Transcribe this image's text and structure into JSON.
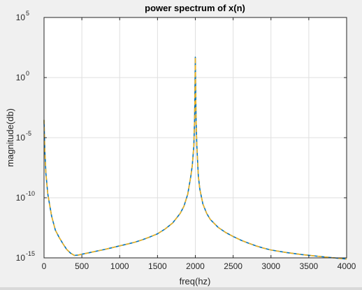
{
  "chart_data": {
    "type": "line",
    "title": "power spectrum of x(n)",
    "xlabel": "freq(hz)",
    "ylabel": "magnitude(db)",
    "xlim": [
      0,
      4000
    ],
    "ylim": [
      1e-15,
      100000.0
    ],
    "yscale": "log",
    "grid": true,
    "x_ticks": [
      0,
      500,
      1000,
      1500,
      2000,
      2500,
      3000,
      3500,
      4000
    ],
    "y_ticks": [
      {
        "base": "10",
        "exp": "-15"
      },
      {
        "base": "10",
        "exp": "-10"
      },
      {
        "base": "10",
        "exp": "-5"
      },
      {
        "base": "10",
        "exp": "0"
      },
      {
        "base": "10",
        "exp": "5"
      }
    ],
    "series": [
      {
        "color": "#0072bd",
        "style": "solid",
        "x": [
          0,
          10,
          25,
          50,
          100,
          150,
          200,
          250,
          300,
          350,
          400,
          450,
          500,
          600,
          700,
          800,
          900,
          1000,
          1100,
          1200,
          1300,
          1400,
          1500,
          1600,
          1700,
          1800,
          1850,
          1900,
          1940,
          1960,
          1980,
          1990,
          1995,
          2000,
          2005,
          2010,
          2020,
          2040,
          2060,
          2100,
          2150,
          2200,
          2300,
          2400,
          2500,
          2600,
          2700,
          2800,
          2900,
          3000,
          3200,
          3400,
          3600,
          3800,
          4000
        ],
        "y": [
          0.0003,
          1e-06,
          1e-08,
          2e-10,
          3e-12,
          2e-13,
          5e-14,
          1.5e-14,
          5e-15,
          2.5e-15,
          1.6e-15,
          1.7e-15,
          2e-15,
          2.7e-15,
          3.7e-15,
          5e-15,
          7e-15,
          1e-14,
          1.4e-14,
          2e-14,
          3.2e-14,
          5.5e-14,
          1e-13,
          2.5e-13,
          8e-13,
          5e-12,
          2e-11,
          2e-10,
          6e-09,
          5e-08,
          2e-06,
          0.0003,
          0.05,
          50.0,
          0.05,
          0.0003,
          2e-06,
          6e-09,
          5e-10,
          3e-11,
          5e-12,
          1.5e-12,
          3.5e-13,
          1.3e-13,
          6e-14,
          3e-14,
          1.7e-14,
          1e-14,
          6.5e-15,
          4.5e-15,
          2.8e-15,
          1.9e-15,
          1.4e-15,
          1.05e-15,
          8e-16
        ]
      },
      {
        "color": "#edb120",
        "style": "dashed",
        "x": [
          0,
          10,
          25,
          50,
          100,
          150,
          200,
          250,
          300,
          350,
          400,
          450,
          500,
          600,
          700,
          800,
          900,
          1000,
          1100,
          1200,
          1300,
          1400,
          1500,
          1600,
          1700,
          1800,
          1850,
          1900,
          1940,
          1960,
          1980,
          1990,
          1995,
          2000,
          2005,
          2010,
          2020,
          2040,
          2060,
          2100,
          2150,
          2200,
          2300,
          2400,
          2500,
          2600,
          2700,
          2800,
          2900,
          3000,
          3200,
          3400,
          3600,
          3800,
          4000
        ],
        "y": [
          0.0003,
          1e-06,
          1e-08,
          2e-10,
          3e-12,
          2e-13,
          5e-14,
          1.5e-14,
          5e-15,
          2.5e-15,
          1.6e-15,
          1.7e-15,
          2e-15,
          2.7e-15,
          3.7e-15,
          5e-15,
          7e-15,
          1e-14,
          1.4e-14,
          2e-14,
          3.2e-14,
          5.5e-14,
          1e-13,
          2.5e-13,
          8e-13,
          5e-12,
          2e-11,
          2e-10,
          6e-09,
          5e-08,
          2e-06,
          0.0003,
          0.05,
          50.0,
          0.05,
          0.0003,
          2e-06,
          6e-09,
          5e-10,
          3e-11,
          5e-12,
          1.5e-12,
          3.5e-13,
          1.3e-13,
          6e-14,
          3e-14,
          1.7e-14,
          1e-14,
          6.5e-15,
          4.5e-15,
          2.8e-15,
          1.9e-15,
          1.4e-15,
          1.05e-15,
          8e-16
        ]
      }
    ]
  }
}
